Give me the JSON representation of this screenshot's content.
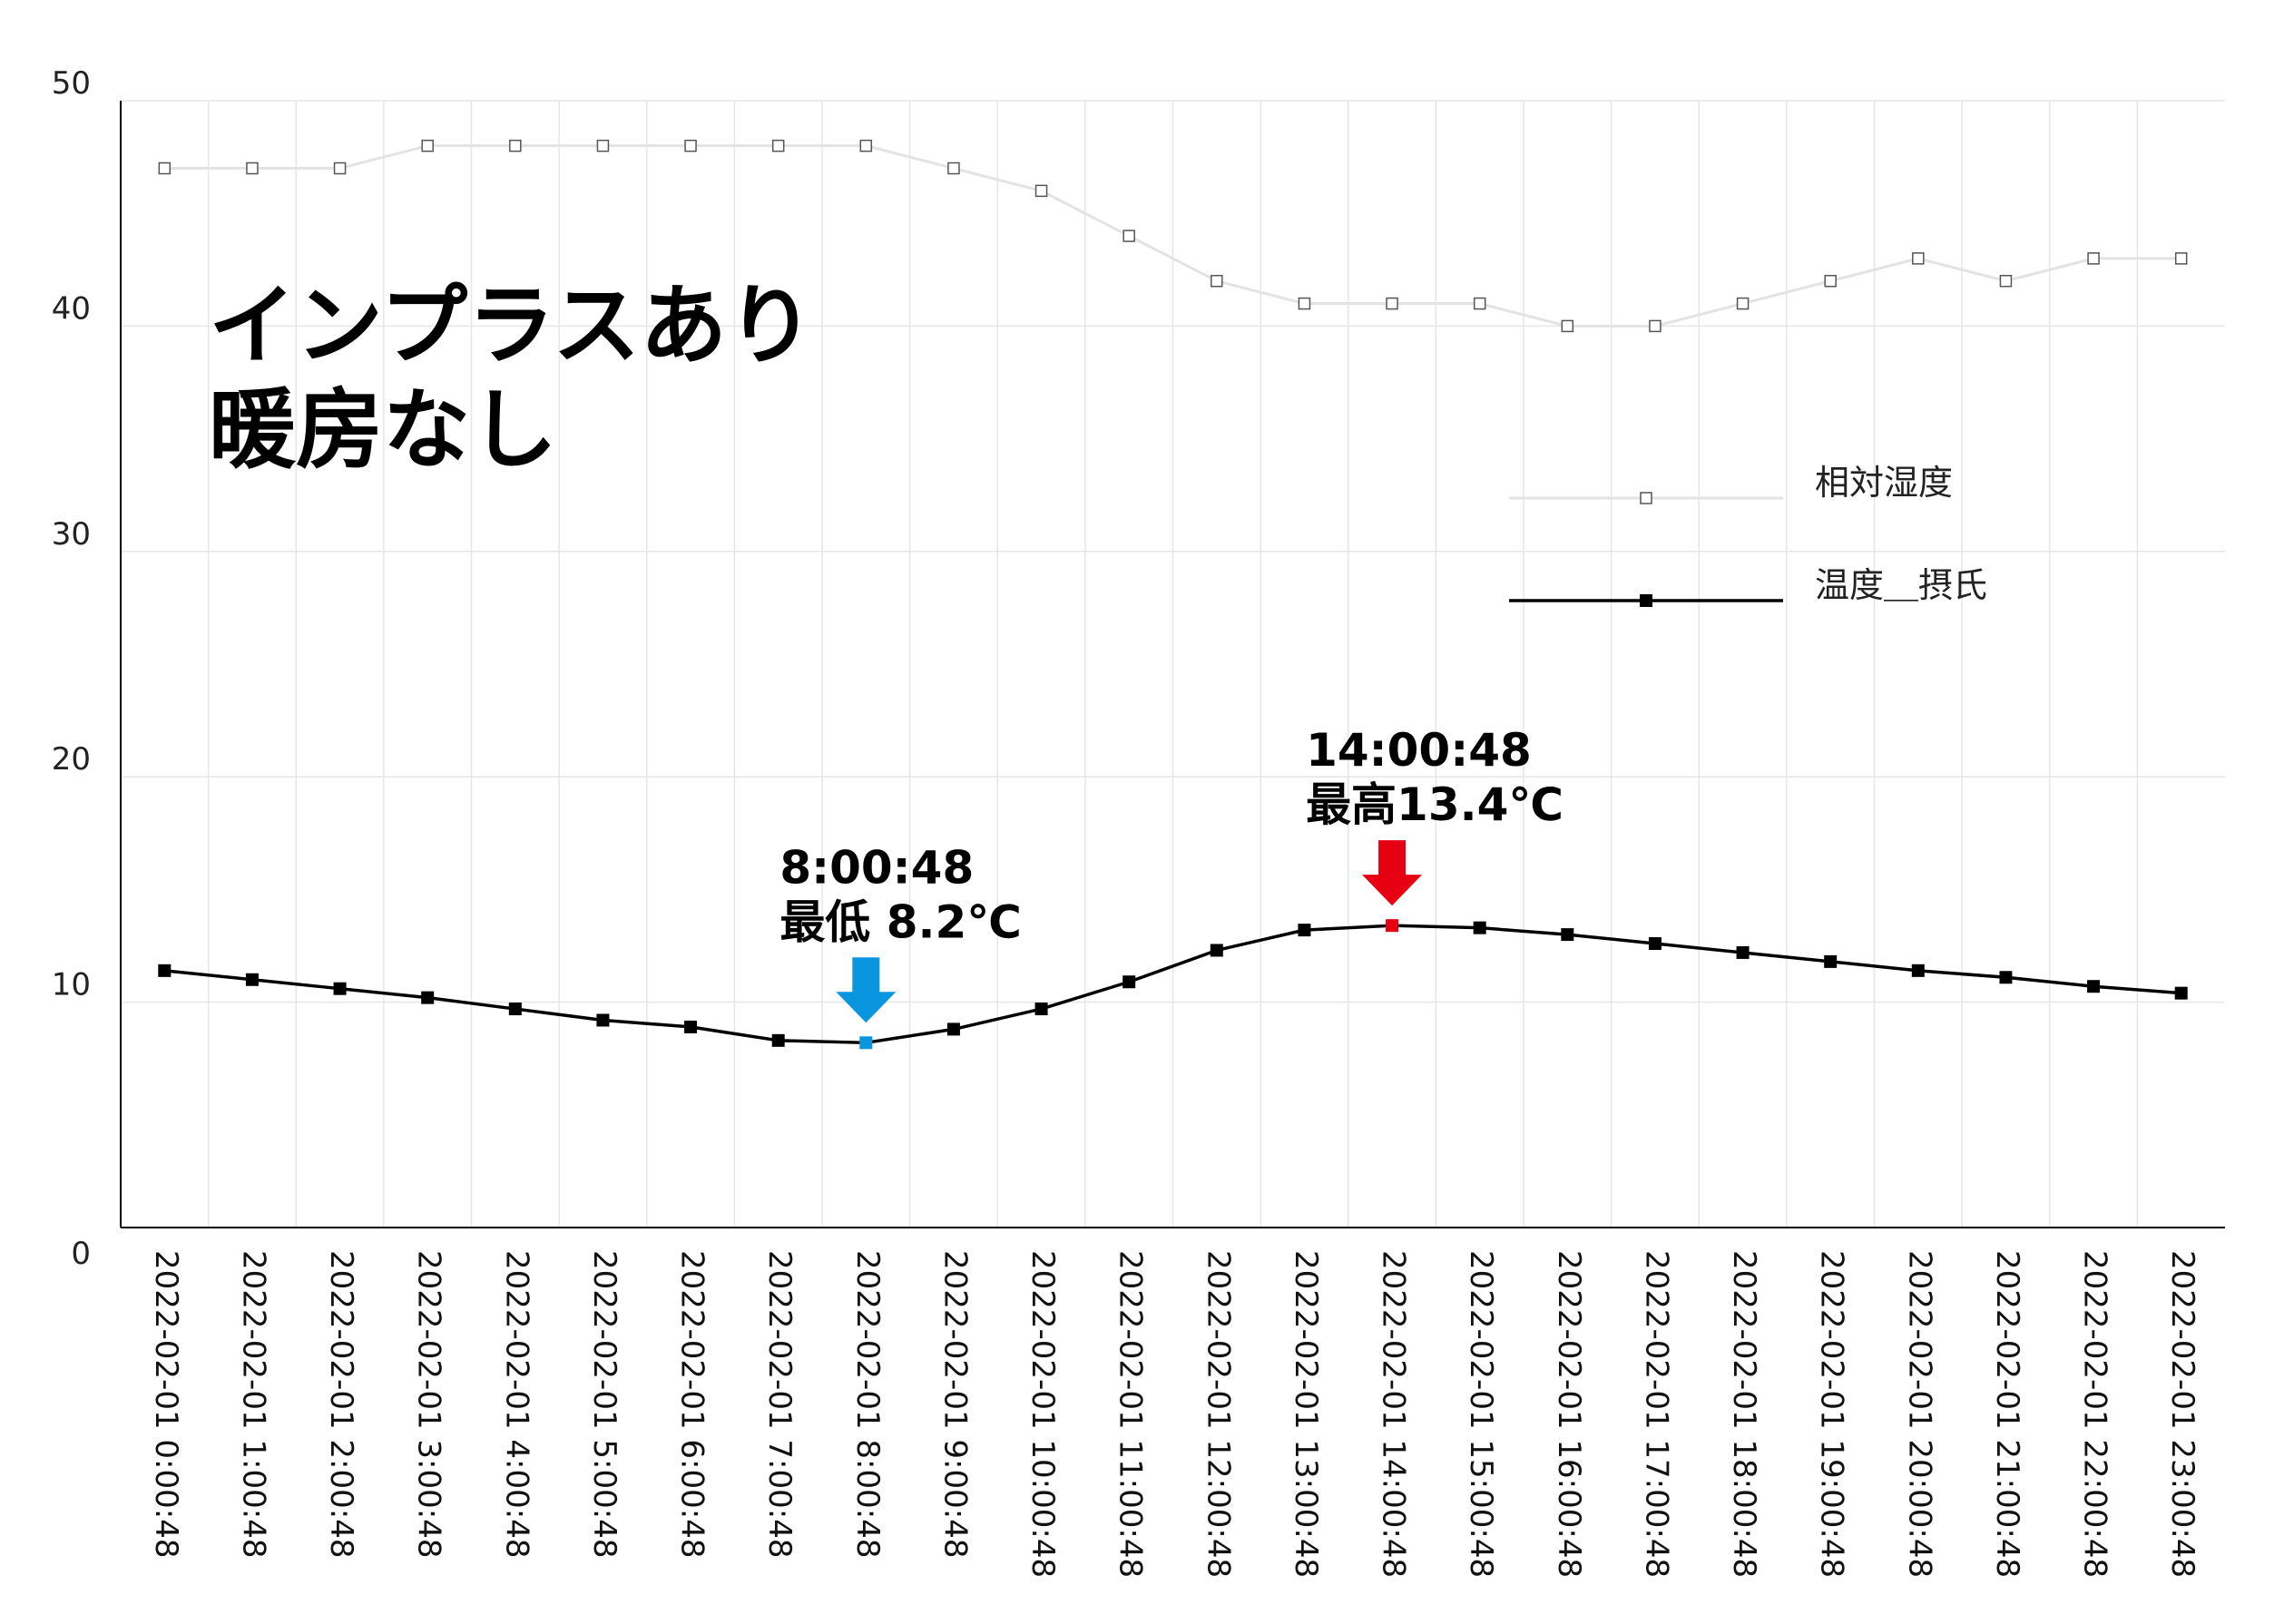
{
  "chart_data": {
    "type": "line",
    "title": "",
    "overlay_text": [
      "インプラスあり",
      "暖房なし"
    ],
    "xlabel": "",
    "ylabel": "",
    "ylim": [
      0,
      50
    ],
    "y_ticks": [
      "0",
      "10",
      "20",
      "30",
      "40",
      "50"
    ],
    "grid": true,
    "legend_position": "right",
    "categories": [
      "2022-02-01 0:00:48",
      "2022-02-01 1:00:48",
      "2022-02-01 2:00:48",
      "2022-02-01 3:00:48",
      "2022-02-01 4:00:48",
      "2022-02-01 5:00:48",
      "2022-02-01 6:00:48",
      "2022-02-01 7:00:48",
      "2022-02-01 8:00:48",
      "2022-02-01 9:00:48",
      "2022-02-01 10:00:48",
      "2022-02-01 11:00:48",
      "2022-02-01 12:00:48",
      "2022-02-01 13:00:48",
      "2022-02-01 14:00:48",
      "2022-02-01 15:00:48",
      "2022-02-01 16:00:48",
      "2022-02-01 17:00:48",
      "2022-02-01 18:00:48",
      "2022-02-01 19:00:48",
      "2022-02-01 20:00:48",
      "2022-02-01 21:00:48",
      "2022-02-01 22:00:48",
      "2022-02-01 23:00:48"
    ],
    "series": [
      {
        "name": "相対湿度",
        "color": "#e3e3e3",
        "marker": "hollow-square",
        "values": [
          47,
          47,
          47,
          48,
          48,
          48,
          48,
          48,
          48,
          47,
          46,
          44,
          42,
          41,
          41,
          41,
          40,
          40,
          41,
          42,
          43,
          42,
          43,
          43
        ]
      },
      {
        "name": "温度＿摂氏",
        "color": "#000000",
        "marker": "filled-square",
        "values": [
          11.4,
          11.0,
          10.6,
          10.2,
          9.7,
          9.2,
          8.9,
          8.3,
          8.2,
          8.8,
          9.7,
          10.9,
          12.3,
          13.2,
          13.4,
          13.3,
          13.0,
          12.6,
          12.2,
          11.8,
          11.4,
          11.1,
          10.7,
          10.4
        ]
      }
    ],
    "annotations": [
      {
        "label_line1": "8:00:48",
        "label_line2": "最低 8.2℃",
        "series": 1,
        "index": 8,
        "value": 8.2,
        "color": "#0a95e0"
      },
      {
        "label_line1": "14:00:48",
        "label_line2": "最高13.4℃",
        "series": 1,
        "index": 14,
        "value": 13.4,
        "color": "#e60012"
      }
    ]
  }
}
